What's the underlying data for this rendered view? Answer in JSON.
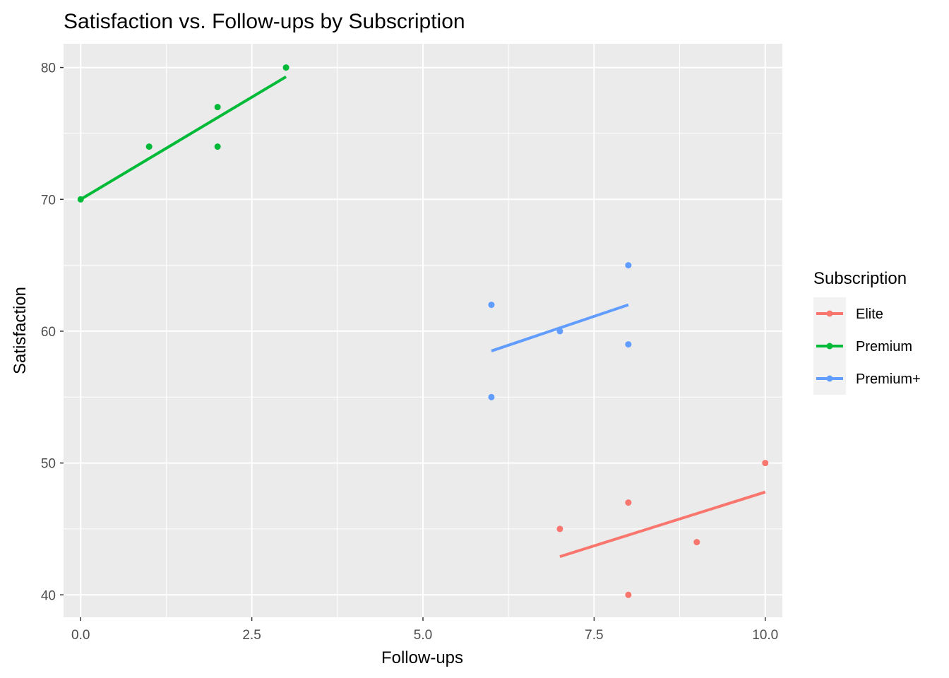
{
  "chart_data": {
    "type": "scatter",
    "title": "Satisfaction vs. Follow-ups by Subscription",
    "xlabel": "Follow-ups",
    "ylabel": "Satisfaction",
    "xlim": [
      -0.25,
      10.25
    ],
    "ylim": [
      38.3,
      81.8
    ],
    "xticks": [
      0.0,
      2.5,
      5.0,
      7.5,
      10.0
    ],
    "xtick_labels": [
      "0.0",
      "2.5",
      "5.0",
      "7.5",
      "10.0"
    ],
    "yticks": [
      40,
      50,
      60,
      70,
      80
    ],
    "ytick_labels": [
      "40",
      "50",
      "60",
      "70",
      "80"
    ],
    "grid": true,
    "background": "#ebebeb",
    "legend": {
      "title": "Subscription",
      "position": "right"
    },
    "series": [
      {
        "name": "Elite",
        "color": "#f8766d",
        "points": [
          [
            7,
            45
          ],
          [
            8,
            47
          ],
          [
            8,
            40
          ],
          [
            9,
            44
          ],
          [
            10,
            50
          ]
        ],
        "fit": [
          [
            7,
            42.9
          ],
          [
            10,
            47.8
          ]
        ]
      },
      {
        "name": "Premium",
        "color": "#00ba38",
        "points": [
          [
            0,
            70
          ],
          [
            1,
            74
          ],
          [
            2,
            77
          ],
          [
            2,
            74
          ],
          [
            3,
            80
          ]
        ],
        "fit": [
          [
            0,
            70.0
          ],
          [
            3,
            79.3
          ]
        ]
      },
      {
        "name": "Premium+",
        "color": "#619cff",
        "points": [
          [
            6,
            62
          ],
          [
            6,
            55
          ],
          [
            7,
            60
          ],
          [
            8,
            65
          ],
          [
            8,
            59
          ]
        ],
        "fit": [
          [
            6,
            58.5
          ],
          [
            8,
            62.0
          ]
        ]
      }
    ]
  }
}
